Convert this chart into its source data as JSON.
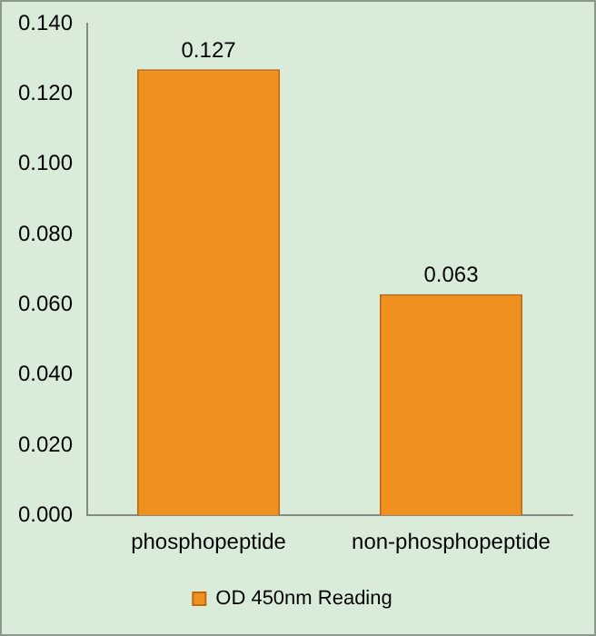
{
  "chart_data": {
    "type": "bar",
    "categories": [
      "phosphopeptide",
      "non-phosphopeptide"
    ],
    "series": [
      {
        "name": "OD 450nm Reading",
        "color": "#f0901e",
        "values": [
          0.127,
          0.063
        ]
      }
    ],
    "ylim": [
      0,
      0.14
    ],
    "yticks": [
      {
        "value": 0,
        "label": "0.000"
      },
      {
        "value": 0.02,
        "label": "0.020"
      },
      {
        "value": 0.04,
        "label": "0.040"
      },
      {
        "value": 0.06,
        "label": "0.060"
      },
      {
        "value": 0.08,
        "label": "0.080"
      },
      {
        "value": 0.1,
        "label": "0.100"
      },
      {
        "value": 0.12,
        "label": "0.120"
      },
      {
        "value": 0.14,
        "label": "0.140"
      }
    ],
    "grid": false,
    "legend": "bottom",
    "data_labels": true
  }
}
